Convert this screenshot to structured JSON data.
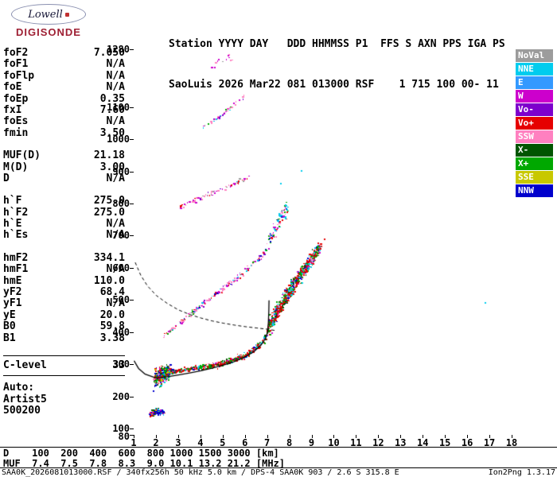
{
  "logo": {
    "top": "Lowell",
    "bottom": "DIGISONDE"
  },
  "header": {
    "line1": "Station YYYY DAY   DDD HHMMSS P1  FFS S AXN PPS IGA PS",
    "line2": "SaoLuis 2026 Mar22 081 013000 RSF    1 715 100 00- 11"
  },
  "params": {
    "groups": [
      {
        "rows": [
          {
            "label": "foF2",
            "value": "7.050"
          },
          {
            "label": "foF1",
            "value": "N/A"
          },
          {
            "label": "foFlp",
            "value": "N/A"
          },
          {
            "label": "foE",
            "value": "N/A"
          },
          {
            "label": "foEp",
            "value": "0.35"
          },
          {
            "label": "fxI",
            "value": "7.60"
          },
          {
            "label": "foEs",
            "value": "N/A"
          },
          {
            "label": "fmin",
            "value": "3.50"
          }
        ]
      },
      {
        "rows": [
          {
            "label": "MUF(D)",
            "value": "21.18"
          },
          {
            "label": "M(D)",
            "value": "3.00"
          },
          {
            "label": "D",
            "value": "N/A"
          }
        ]
      },
      {
        "rows": [
          {
            "label": "h`F",
            "value": "275.0"
          },
          {
            "label": "h`F2",
            "value": "275.0"
          },
          {
            "label": "h`E",
            "value": "N/A"
          },
          {
            "label": "h`Es",
            "value": "N/A"
          }
        ]
      },
      {
        "rows": [
          {
            "label": "hmF2",
            "value": "334.1"
          },
          {
            "label": "hmF1",
            "value": "N/A"
          },
          {
            "label": "hmE",
            "value": "110.0"
          },
          {
            "label": "yF2",
            "value": "68.4"
          },
          {
            "label": "yF1",
            "value": "N/A"
          },
          {
            "label": "yE",
            "value": "20.0"
          },
          {
            "label": "B0",
            "value": "59.8"
          },
          {
            "label": "B1",
            "value": "3.38"
          }
        ]
      }
    ],
    "clevel": {
      "label": "C-level",
      "value": "33"
    },
    "auto": [
      "Auto:",
      "Artist5",
      "500200"
    ]
  },
  "legend": {
    "items": [
      {
        "label": "NoVal",
        "color": "#9C9C9C"
      },
      {
        "label": "NNE",
        "color": "#00CCEE"
      },
      {
        "label": "E",
        "color": "#3399FF"
      },
      {
        "label": "W",
        "color": "#CC00CC"
      },
      {
        "label": "Vo-",
        "color": "#7D00CC"
      },
      {
        "label": "Vo+",
        "color": "#E60000"
      },
      {
        "label": "SSW",
        "color": "#FF80C0"
      },
      {
        "label": "X-",
        "color": "#005500"
      },
      {
        "label": "X+",
        "color": "#00A800"
      },
      {
        "label": "SSE",
        "color": "#C8C800"
      },
      {
        "label": "NNW",
        "color": "#0000CC"
      }
    ]
  },
  "bottom_table": {
    "rows": [
      {
        "label": "D",
        "values": [
          "100",
          "200",
          "400",
          "600",
          "800",
          "1000",
          "1500",
          "3000"
        ],
        "unit": "[km]"
      },
      {
        "label": "MUF",
        "values": [
          "7.4",
          "7.5",
          "7.8",
          "8.3",
          "9.0",
          "10.1",
          "13.2",
          "21.2"
        ],
        "unit": "[MHz]"
      }
    ]
  },
  "footer": {
    "left": "SAA0K_2026081013000.RSF / 340fx256h 50 kHz 5.0 km / DPS-4 SAA0K 903 / 2.6 S 315.8 E",
    "right": "Ion2Png 1.3.17"
  },
  "chart_data": {
    "type": "scatter",
    "x_axis": {
      "unit": "MHz",
      "min": 1,
      "max": 18,
      "ticks": [
        1,
        2,
        3,
        4,
        5,
        6,
        7,
        8,
        9,
        10,
        11,
        12,
        13,
        14,
        15,
        16,
        17,
        18
      ]
    },
    "y_axis": {
      "unit": "km",
      "min": 80,
      "max": 1280,
      "ticks": [
        80,
        100,
        200,
        300,
        400,
        500,
        600,
        700,
        800,
        900,
        1000,
        1100,
        1280
      ]
    },
    "palette": {
      "NoVal": "#9C9C9C",
      "NNE": "#00CCEE",
      "E": "#3399FF",
      "W": "#CC00CC",
      "Vo-": "#7D00CC",
      "Vo+": "#E60000",
      "SSW": "#FF80C0",
      "X-": "#005500",
      "X+": "#00A800",
      "SSE": "#C8C800",
      "NNW": "#0000CC"
    },
    "traces": [
      {
        "name": "e-region-cluster",
        "points": [
          [
            1.7,
            146
          ],
          [
            1.9,
            152
          ],
          [
            2.1,
            154
          ],
          [
            2.35,
            150
          ]
        ],
        "thickness": 18,
        "density": 120,
        "jitter_f": 0.1,
        "colors": {
          "NNW": 0.4,
          "Vo+": 0.16,
          "X-": 0.12,
          "W": 0.1,
          "NNE": 0.12,
          "SSE": 0.1
        }
      },
      {
        "name": "f-start-cluster",
        "points": [
          [
            1.9,
            252
          ],
          [
            2.1,
            263
          ],
          [
            2.35,
            271
          ],
          [
            2.6,
            277
          ]
        ],
        "thickness": [
          64,
          36
        ],
        "density": 340,
        "jitter_f": 0.09,
        "colors": {
          "Vo+": 0.28,
          "X+": 0.18,
          "NNE": 0.12,
          "NNW": 0.12,
          "W": 0.1,
          "SSW": 0.08,
          "X-": 0.07,
          "SSE": 0.05
        }
      },
      {
        "name": "f-trace",
        "points": [
          [
            2.6,
            278
          ],
          [
            3.0,
            282
          ],
          [
            3.5,
            287
          ],
          [
            4.0,
            292
          ],
          [
            4.5,
            298
          ],
          [
            5.0,
            305
          ],
          [
            5.5,
            315
          ],
          [
            6.0,
            330
          ],
          [
            6.3,
            342
          ],
          [
            6.6,
            358
          ],
          [
            6.8,
            374
          ],
          [
            6.95,
            392
          ],
          [
            7.05,
            415
          ],
          [
            7.15,
            442
          ]
        ],
        "thickness": [
          14,
          22
        ],
        "density": 430,
        "jitter_f": 0.06,
        "colors": {
          "Vo+": 0.42,
          "X+": 0.22,
          "NNE": 0.1,
          "X-": 0.09,
          "SSW": 0.06,
          "W": 0.05,
          "NNW": 0.06
        }
      },
      {
        "name": "spread-f-band",
        "points": [
          [
            7.05,
            420
          ],
          [
            7.3,
            450
          ],
          [
            7.6,
            485
          ],
          [
            7.9,
            520
          ],
          [
            8.2,
            552
          ],
          [
            8.5,
            583
          ],
          [
            8.8,
            612
          ],
          [
            9.1,
            642
          ],
          [
            9.35,
            668
          ]
        ],
        "thickness": [
          56,
          38
        ],
        "density": 820,
        "jitter_f": 0.07,
        "colors": {
          "Vo+": 0.38,
          "X+": 0.2,
          "NNE": 0.13,
          "X-": 0.11,
          "NNW": 0.07,
          "SSW": 0.06,
          "W": 0.05
        }
      },
      {
        "name": "second-hop-trace",
        "points": [
          [
            2.3,
            388
          ],
          [
            2.8,
            415
          ],
          [
            3.3,
            445
          ],
          [
            3.9,
            478
          ],
          [
            4.5,
            510
          ],
          [
            5.1,
            542
          ],
          [
            5.7,
            575
          ],
          [
            6.2,
            605
          ],
          [
            6.7,
            638
          ],
          [
            7.0,
            658
          ]
        ],
        "thickness": 16,
        "density": 180,
        "jitter_f": 0.09,
        "colors": {
          "SSW": 0.26,
          "W": 0.2,
          "Vo+": 0.16,
          "NNE": 0.1,
          "NNW": 0.1,
          "X+": 0.1,
          "Vo-": 0.08
        }
      },
      {
        "name": "second-hop-spread",
        "points": [
          [
            7.0,
            680
          ],
          [
            7.3,
            718
          ],
          [
            7.6,
            756
          ],
          [
            7.9,
            796
          ]
        ],
        "thickness": 44,
        "density": 80,
        "jitter_f": 0.12,
        "colors": {
          "NNE": 0.2,
          "SSW": 0.2,
          "W": 0.15,
          "NNW": 0.15,
          "Vo+": 0.15,
          "X+": 0.15
        }
      },
      {
        "name": "third-multiple-arc",
        "points": [
          [
            3.0,
            790
          ],
          [
            3.6,
            808
          ],
          [
            4.2,
            826
          ],
          [
            4.9,
            846
          ],
          [
            5.6,
            866
          ],
          [
            6.2,
            884
          ]
        ],
        "thickness": 12,
        "density": 70,
        "jitter_f": 0.12,
        "colors": {
          "SSW": 0.38,
          "W": 0.2,
          "Vo-": 0.12,
          "Vo+": 0.12,
          "NNE": 0.08,
          "NoVal": 0.1
        }
      },
      {
        "name": "fourth-multiple-arc",
        "points": [
          [
            4.1,
            1040
          ],
          [
            4.6,
            1062
          ],
          [
            5.1,
            1088
          ],
          [
            5.6,
            1114
          ],
          [
            6.0,
            1138
          ]
        ],
        "thickness": 12,
        "density": 42,
        "jitter_f": 0.12,
        "colors": {
          "SSW": 0.34,
          "W": 0.2,
          "NoVal": 0.16,
          "Vo-": 0.1,
          "NNE": 0.1,
          "X+": 0.1
        }
      },
      {
        "name": "top-specks",
        "points": [
          [
            4.4,
            1225
          ],
          [
            4.9,
            1245
          ],
          [
            5.4,
            1258
          ]
        ],
        "thickness": 22,
        "density": 12,
        "jitter_f": 0.15,
        "colors": {
          "SSW": 0.4,
          "NoVal": 0.3,
          "W": 0.3
        }
      }
    ],
    "stray_points": [
      [
        8.5,
        905,
        "NNE"
      ],
      [
        7.6,
        865,
        "NNE"
      ],
      [
        16.8,
        492,
        "NNE"
      ],
      [
        9.55,
        690,
        "Vo+"
      ]
    ],
    "profile_line": [
      [
        1.0,
        312
      ],
      [
        1.2,
        288
      ],
      [
        1.5,
        270
      ],
      [
        2.0,
        258
      ],
      [
        2.5,
        262
      ],
      [
        3.0,
        268
      ],
      [
        3.5,
        274
      ],
      [
        4.0,
        281
      ],
      [
        4.5,
        289
      ],
      [
        5.0,
        298
      ],
      [
        5.5,
        309
      ],
      [
        6.0,
        324
      ],
      [
        6.4,
        341
      ],
      [
        6.7,
        360
      ],
      [
        6.9,
        380
      ],
      [
        7.0,
        400
      ],
      [
        7.04,
        430
      ],
      [
        7.06,
        465
      ],
      [
        7.07,
        500
      ]
    ],
    "transmission_curve": [
      [
        1.05,
        618
      ],
      [
        1.3,
        578
      ],
      [
        1.6,
        545
      ],
      [
        2.0,
        515
      ],
      [
        2.5,
        490
      ],
      [
        3.0,
        470
      ],
      [
        3.5,
        456
      ],
      [
        4.0,
        445
      ],
      [
        4.5,
        436
      ],
      [
        5.0,
        429
      ],
      [
        5.5,
        423
      ],
      [
        6.0,
        418
      ],
      [
        6.5,
        414
      ],
      [
        7.0,
        410
      ],
      [
        7.35,
        406
      ]
    ]
  }
}
